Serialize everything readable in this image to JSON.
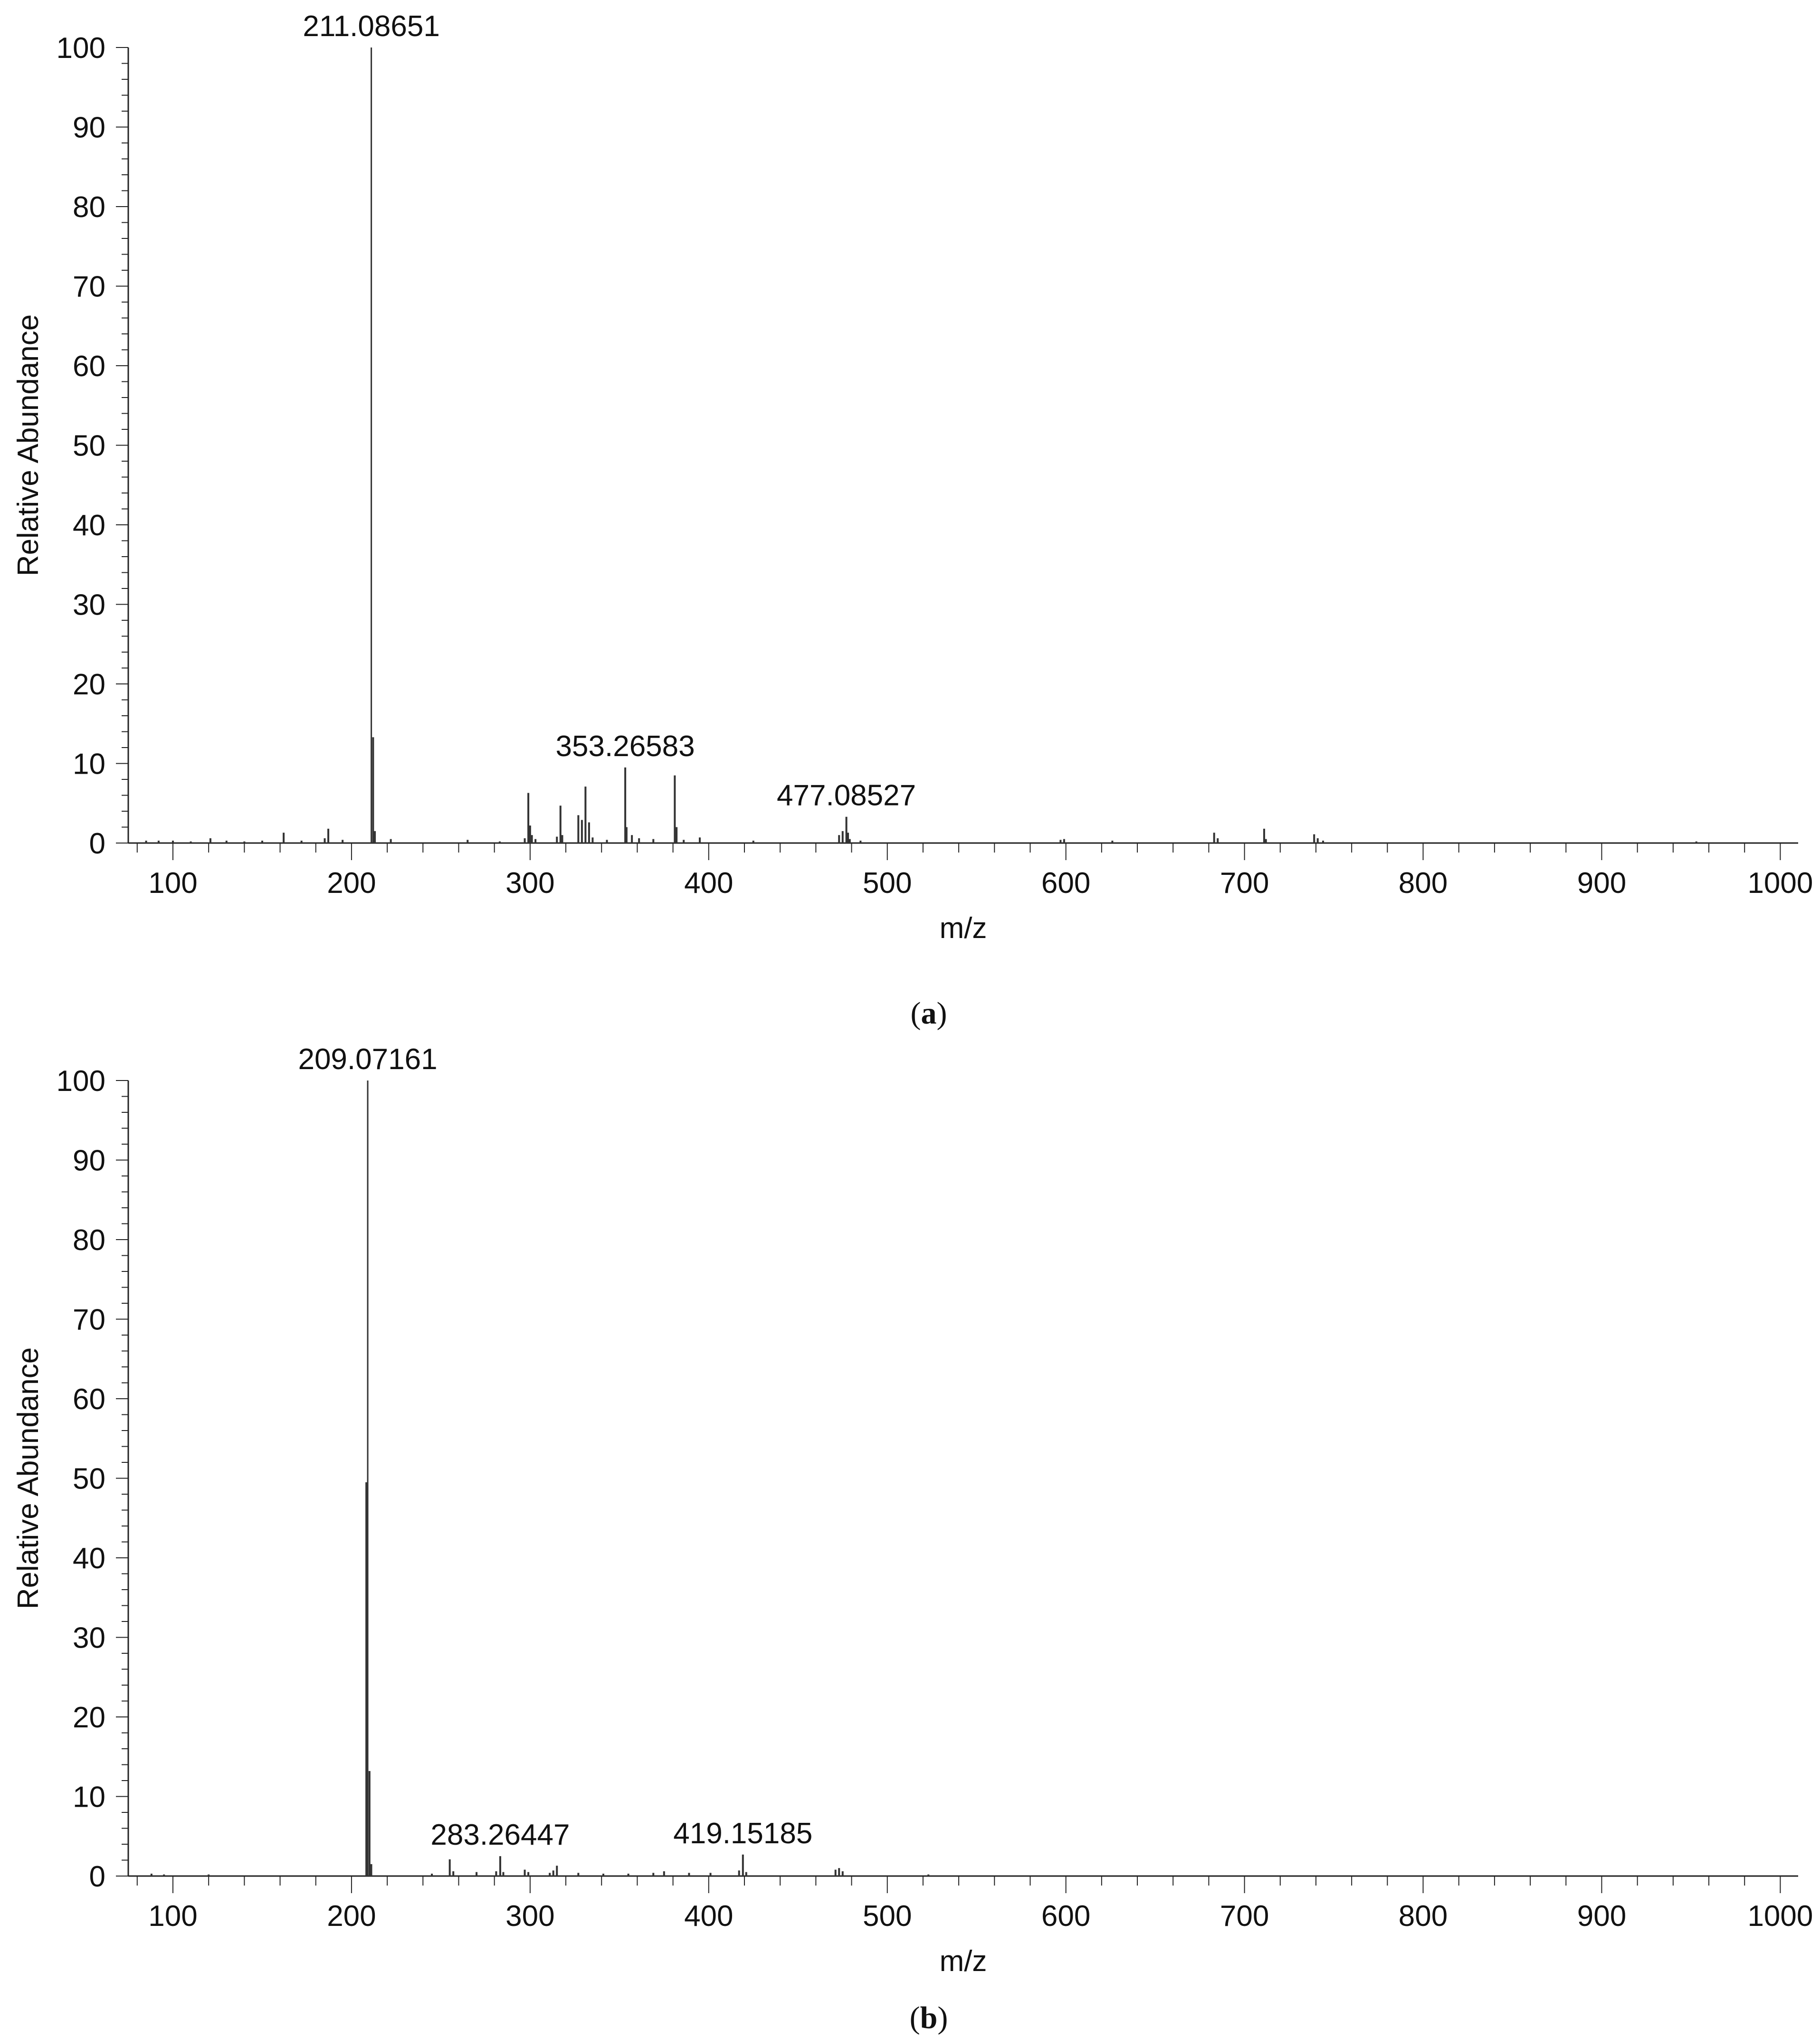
{
  "chart_data": [
    {
      "type": "bar",
      "panel": "(a)",
      "panel_letter": "a",
      "xlabel": "m/z",
      "ylabel": "Relative Abundance",
      "xlim": [
        75,
        1010
      ],
      "ylim": [
        0,
        100
      ],
      "xticks": [
        100,
        200,
        300,
        400,
        500,
        600,
        700,
        800,
        900,
        1000
      ],
      "yticks": [
        0,
        10,
        20,
        30,
        40,
        50,
        60,
        70,
        80,
        90,
        100
      ],
      "peak_labels": [
        {
          "text": "211.08651",
          "x": 211.08651,
          "y": 100
        },
        {
          "text": "353.26583",
          "x": 353.26583,
          "y": 9.5
        },
        {
          "text": "477.08527",
          "x": 477.08527,
          "y": 3.3
        }
      ],
      "peaks": [
        [
          85,
          0.3
        ],
        [
          92,
          0.3
        ],
        [
          100,
          0.3
        ],
        [
          110,
          0.2
        ],
        [
          121,
          0.6
        ],
        [
          130,
          0.3
        ],
        [
          140,
          0.2
        ],
        [
          150,
          0.3
        ],
        [
          162,
          1.3
        ],
        [
          172,
          0.3
        ],
        [
          185,
          0.6
        ],
        [
          187,
          1.8
        ],
        [
          195,
          0.4
        ],
        [
          211.08651,
          100
        ],
        [
          212.09,
          13.3
        ],
        [
          213.08,
          1.5
        ],
        [
          222,
          0.5
        ],
        [
          265,
          0.4
        ],
        [
          283,
          0.2
        ],
        [
          297,
          0.6
        ],
        [
          299,
          6.3
        ],
        [
          300,
          2.2
        ],
        [
          301,
          1.0
        ],
        [
          303,
          0.5
        ],
        [
          315,
          0.8
        ],
        [
          317,
          4.7
        ],
        [
          318,
          1.0
        ],
        [
          327,
          3.5
        ],
        [
          329,
          2.9
        ],
        [
          331,
          7.1
        ],
        [
          333,
          2.6
        ],
        [
          335,
          0.7
        ],
        [
          343,
          0.4
        ],
        [
          353.26583,
          9.5
        ],
        [
          354,
          2.0
        ],
        [
          357,
          1.0
        ],
        [
          361,
          0.6
        ],
        [
          369,
          0.5
        ],
        [
          381,
          8.5
        ],
        [
          382,
          2.0
        ],
        [
          386,
          0.4
        ],
        [
          395,
          0.7
        ],
        [
          425,
          0.3
        ],
        [
          473,
          1.0
        ],
        [
          475,
          1.5
        ],
        [
          477.08527,
          3.3
        ],
        [
          478,
          1.3
        ],
        [
          479,
          0.5
        ],
        [
          485,
          0.3
        ],
        [
          597,
          0.4
        ],
        [
          599,
          0.5
        ],
        [
          626,
          0.3
        ],
        [
          683,
          1.3
        ],
        [
          685,
          0.6
        ],
        [
          711,
          1.8
        ],
        [
          712,
          0.5
        ],
        [
          739,
          1.1
        ],
        [
          741,
          0.6
        ],
        [
          744,
          0.3
        ],
        [
          953,
          0.2
        ]
      ]
    },
    {
      "type": "bar",
      "panel": "(b)",
      "panel_letter": "b",
      "xlabel": "m/z",
      "ylabel": "Relative Abundance",
      "xlim": [
        75,
        1010
      ],
      "ylim": [
        0,
        100
      ],
      "xticks": [
        100,
        200,
        300,
        400,
        500,
        600,
        700,
        800,
        900,
        1000
      ],
      "yticks": [
        0,
        10,
        20,
        30,
        40,
        50,
        60,
        70,
        80,
        90,
        100
      ],
      "peak_labels": [
        {
          "text": "209.07161",
          "x": 209.07161,
          "y": 100
        },
        {
          "text": "283.26447",
          "x": 283.26447,
          "y": 2.5
        },
        {
          "text": "419.15185",
          "x": 419.15185,
          "y": 2.7
        }
      ],
      "peaks": [
        [
          88,
          0.3
        ],
        [
          95,
          0.2
        ],
        [
          120,
          0.2
        ],
        [
          208.3,
          49.5
        ],
        [
          209.07161,
          100
        ],
        [
          210.07,
          13.2
        ],
        [
          211.07,
          1.5
        ],
        [
          245,
          0.3
        ],
        [
          255,
          2.1
        ],
        [
          257,
          0.6
        ],
        [
          270,
          0.5
        ],
        [
          281,
          0.6
        ],
        [
          283.26447,
          2.5
        ],
        [
          285,
          0.5
        ],
        [
          297,
          0.8
        ],
        [
          299,
          0.5
        ],
        [
          311,
          0.4
        ],
        [
          313,
          0.7
        ],
        [
          315,
          1.3
        ],
        [
          327,
          0.4
        ],
        [
          341,
          0.3
        ],
        [
          355,
          0.3
        ],
        [
          369,
          0.4
        ],
        [
          375,
          0.6
        ],
        [
          389,
          0.4
        ],
        [
          401,
          0.4
        ],
        [
          417,
          0.7
        ],
        [
          419.15185,
          2.7
        ],
        [
          421,
          0.5
        ],
        [
          471,
          0.8
        ],
        [
          473,
          1.0
        ],
        [
          475,
          0.6
        ],
        [
          523,
          0.2
        ]
      ]
    }
  ]
}
